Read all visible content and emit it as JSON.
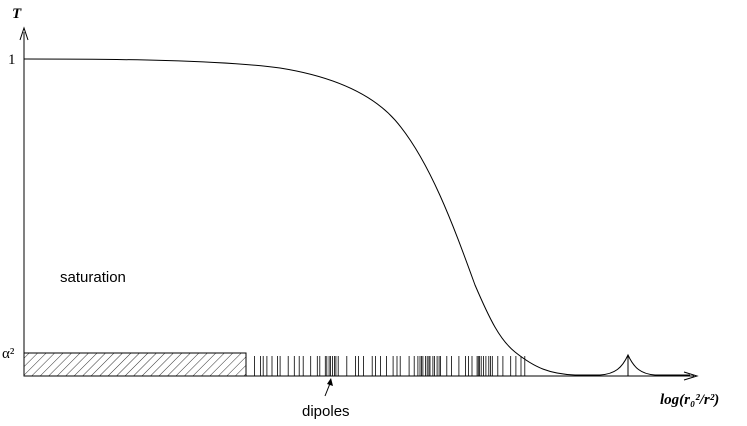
{
  "axis_labels": {
    "y": "T",
    "x": "log(r₀²/r²)"
  },
  "y_marks": {
    "top": "1",
    "bottom": "α²"
  },
  "annotations": {
    "region": "saturation",
    "dipoles": "dipoles"
  }
}
